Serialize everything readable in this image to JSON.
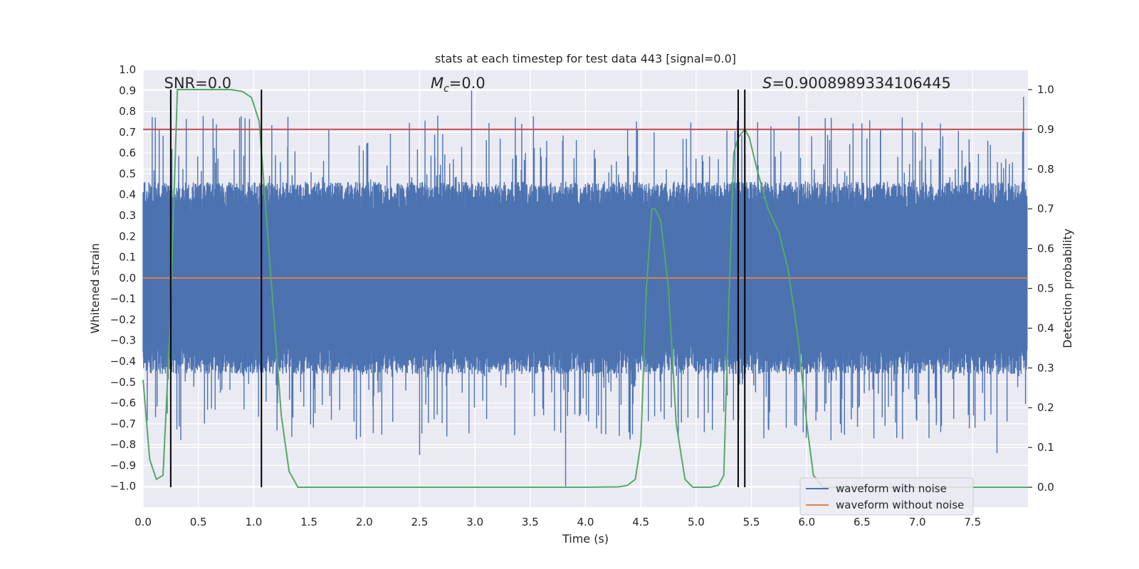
{
  "chart_data": {
    "type": "line",
    "title": "stats at each timestep for test data 443 [signal=0.0]",
    "xlabel": "Time (s)",
    "ylabel": "Whitened strain",
    "y2label": "Detection probability",
    "xlim": [
      0.0,
      8.0
    ],
    "ylim": [
      -1.1,
      1.0
    ],
    "y2lim": [
      -0.05,
      1.05
    ],
    "xticks": [
      "0.0",
      "0.5",
      "1.0",
      "1.5",
      "2.0",
      "2.5",
      "3.0",
      "3.5",
      "4.0",
      "4.5",
      "5.0",
      "5.5",
      "6.0",
      "6.5",
      "7.0",
      "7.5"
    ],
    "yticks": [
      "1.0",
      "0.9",
      "0.8",
      "0.7",
      "0.6",
      "0.5",
      "0.4",
      "0.3",
      "0.2",
      "0.1",
      "0.0",
      "−0.1",
      "−0.2",
      "−0.3",
      "−0.4",
      "−0.5",
      "−0.6",
      "−0.7",
      "−0.8",
      "−0.9",
      "−1.0"
    ],
    "y2ticks": [
      "1.0",
      "0.9",
      "0.8",
      "0.7",
      "0.6",
      "0.5",
      "0.4",
      "0.3",
      "0.2",
      "0.1",
      "0.0"
    ],
    "annotations": {
      "snr": "SNR=0.0",
      "mc_symbol": "M",
      "mc_sub": "c",
      "mc_value": "=0.0",
      "s_symbol": "S",
      "s_value": "=0.9008989334106445"
    },
    "threshold_line": {
      "y2": 0.9,
      "color": "#c44e52"
    },
    "vertical_lines": [
      0.25,
      1.07,
      5.38,
      5.44
    ],
    "waveform_with_noise": {
      "name": "waveform with noise",
      "color": "#4c72b0",
      "envelope_min": -0.42,
      "envelope_max": 0.42,
      "spike_max": 0.91,
      "spike_min": -1.0,
      "notable_spikes": [
        {
          "t": 2.97,
          "v": 0.9
        },
        {
          "t": 3.82,
          "v": -1.0
        },
        {
          "t": 1.07,
          "v": 0.83
        },
        {
          "t": 7.96,
          "v": 0.87
        },
        {
          "t": 7.72,
          "v": -0.84
        },
        {
          "t": 2.5,
          "v": -0.85
        }
      ]
    },
    "waveform_without_noise": {
      "name": "waveform without noise",
      "color": "#dd8452",
      "value": 0.0
    },
    "detection_probability": {
      "name": "detection probability",
      "color": "#55a868",
      "t": [
        0.0,
        0.06,
        0.12,
        0.18,
        0.24,
        0.31,
        0.4,
        0.6,
        0.8,
        0.9,
        0.98,
        1.05,
        1.15,
        1.25,
        1.32,
        1.4,
        1.5,
        2.0,
        3.0,
        4.0,
        4.3,
        4.38,
        4.45,
        4.5,
        4.55,
        4.6,
        4.63,
        4.68,
        4.75,
        4.82,
        4.9,
        4.97,
        5.05,
        5.13,
        5.2,
        5.25,
        5.3,
        5.34,
        5.38,
        5.44,
        5.48,
        5.55,
        5.65,
        5.75,
        5.83,
        5.92,
        6.0,
        6.06,
        6.15,
        6.3,
        8.0
      ],
      "p": [
        0.27,
        0.07,
        0.02,
        0.03,
        0.38,
        1.0,
        1.0,
        1.0,
        1.0,
        0.995,
        0.98,
        0.92,
        0.55,
        0.18,
        0.04,
        0.0,
        0.0,
        0.0,
        0.0,
        0.0,
        0.001,
        0.005,
        0.02,
        0.11,
        0.5,
        0.7,
        0.7,
        0.67,
        0.5,
        0.16,
        0.02,
        0.0,
        0.0,
        0.0,
        0.005,
        0.03,
        0.5,
        0.84,
        0.88,
        0.9,
        0.88,
        0.8,
        0.7,
        0.64,
        0.55,
        0.38,
        0.16,
        0.03,
        0.0,
        0.0,
        0.0
      ]
    },
    "legend": {
      "placement": "bottom-right",
      "entries": [
        "waveform with noise",
        "waveform without noise"
      ]
    },
    "background_color": "#eaeaf2",
    "grid": true
  }
}
